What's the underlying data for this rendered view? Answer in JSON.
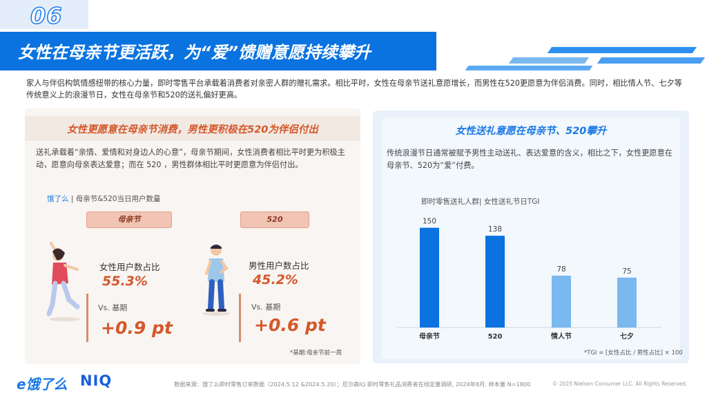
{
  "header": {
    "page_number": "06",
    "title": "女性在母亲节更活跃，为“爱”馈赠意愿持续攀升"
  },
  "intro_text": "家人与伴侣构筑情感纽带的核心力量，即时零售平台承载着消费者对亲密人群的赠礼需求。相比平时，女性在母亲节送礼意愿增长，而男性在520更愿意为伴侣消费。同时，相比情人节、七夕等传统意义上的浪漫节日，女性在母亲节和520的送礼偏好更高。",
  "left_panel": {
    "heading": "女性更愿意在母亲节消费，男性更积极在520为伴侣付出",
    "description": "送礼承载着“亲情、爱情和对身边人的心意”，母亲节期间，女性消费者相比平时更为积极主动，愿意向母亲表达爱意；而在 520 ，男性群体相比平时更愿意为伴侣付出。",
    "source_brand": "饿了么",
    "source_rest": "| 母亲节&520当日用户数量",
    "mothers_day": {
      "pill": "母亲节",
      "metric_label": "女性用户数占比",
      "metric_value": "55.3%",
      "vs_label": "Vs. 基期",
      "delta": "+0.9 pt"
    },
    "day_520": {
      "pill": "520",
      "metric_label": "男性用户数占比",
      "metric_value": "45.2%",
      "vs_label": "Vs. 基期",
      "delta": "+0.6 pt"
    },
    "note": "*基期:母亲节前一周"
  },
  "right_panel": {
    "heading": "女性送礼意愿在母亲节、520攀升",
    "description": "传统浪漫节日通常被赋予男性主动送礼、表达爱意的含义，相比之下，女性更愿意在母亲节、520为“爱”付费。",
    "chart_label": "即时零售送礼人群| 女性送礼节日TGI",
    "formula": "*TGI = [女性占比 / 男性占比] × 100"
  },
  "chart_data": {
    "type": "bar",
    "categories": [
      "母亲节",
      "520",
      "情人节",
      "七夕"
    ],
    "values": [
      150,
      138,
      78,
      75
    ],
    "colors": [
      "#0a73e0",
      "#0a73e0",
      "#7ab8f0",
      "#7ab8f0"
    ],
    "title": "即时零售送礼人群| 女性送礼节日TGI",
    "ylim": [
      0,
      160
    ]
  },
  "footer": {
    "logo_eleme": "e饿了么",
    "logo_niq": "NIQ",
    "source": "数据来源：饿了么即时零售订单数据（2024.5.12 &2024.5.20）；尼尔森IQ 即时零售礼品消费者在线定量调研, 2024年8月, 样本量 N=1800",
    "copyright": "© 2025 Nielsen Consumer LLC. All Rights Reserved."
  }
}
